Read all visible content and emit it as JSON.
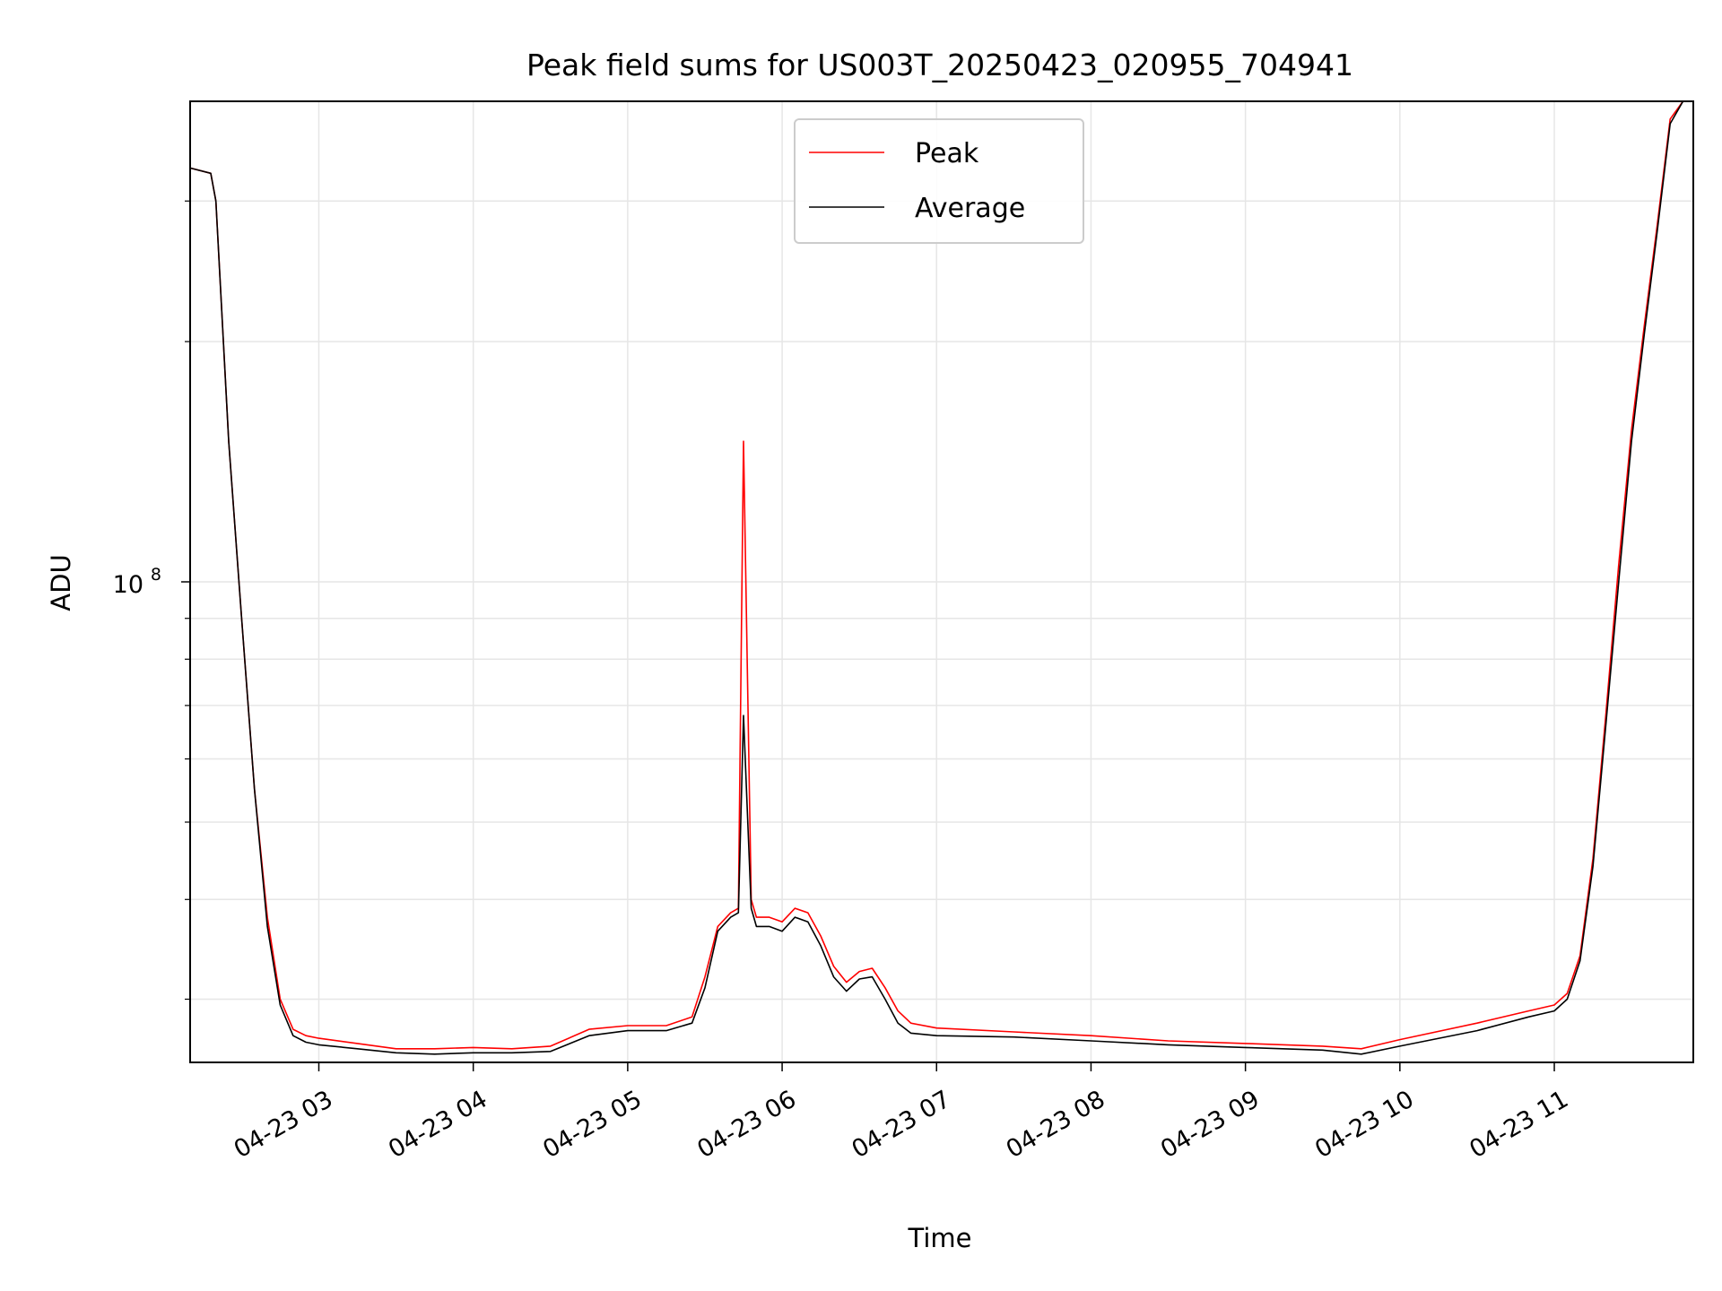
{
  "chart_data": {
    "type": "line",
    "title": "Peak field sums for US003T_20250423_020955_704941",
    "xlabel": "Time",
    "ylabel": "ADU",
    "yscale": "log",
    "xlim": [
      "2025-04-23 02:10",
      "2025-04-23 11:54"
    ],
    "ylim": [
      25000000,
      400000000
    ],
    "x_ticks": [
      "04-23 03",
      "04-23 04",
      "04-23 05",
      "04-23 06",
      "04-23 07",
      "04-23 08",
      "04-23 09",
      "04-23 10",
      "04-23 11"
    ],
    "y_major_tick": {
      "value": 100000000,
      "label_base": "10",
      "label_exp": "8"
    },
    "y_minor_ticks": [
      30000000,
      40000000,
      50000000,
      60000000,
      70000000,
      80000000,
      90000000,
      200000000,
      300000000
    ],
    "grid": true,
    "legend": {
      "position": "upper center",
      "entries": [
        "Peak",
        "Average"
      ]
    },
    "colors": {
      "Peak": "#ff0000",
      "Average": "#000000"
    },
    "series": [
      {
        "name": "Peak",
        "x": [
          "2025-04-23 02:10",
          "2025-04-23 02:18",
          "2025-04-23 02:20",
          "2025-04-23 02:25",
          "2025-04-23 02:30",
          "2025-04-23 02:35",
          "2025-04-23 02:40",
          "2025-04-23 02:45",
          "2025-04-23 02:50",
          "2025-04-23 02:55",
          "2025-04-23 03:00",
          "2025-04-23 03:15",
          "2025-04-23 03:30",
          "2025-04-23 03:45",
          "2025-04-23 04:00",
          "2025-04-23 04:15",
          "2025-04-23 04:30",
          "2025-04-23 04:45",
          "2025-04-23 05:00",
          "2025-04-23 05:15",
          "2025-04-23 05:25",
          "2025-04-23 05:30",
          "2025-04-23 05:35",
          "2025-04-23 05:40",
          "2025-04-23 05:43",
          "2025-04-23 05:45",
          "2025-04-23 05:48",
          "2025-04-23 05:50",
          "2025-04-23 05:55",
          "2025-04-23 06:00",
          "2025-04-23 06:05",
          "2025-04-23 06:10",
          "2025-04-23 06:15",
          "2025-04-23 06:20",
          "2025-04-23 06:25",
          "2025-04-23 06:30",
          "2025-04-23 06:35",
          "2025-04-23 06:40",
          "2025-04-23 06:45",
          "2025-04-23 06:50",
          "2025-04-23 07:00",
          "2025-04-23 07:30",
          "2025-04-23 08:00",
          "2025-04-23 08:30",
          "2025-04-23 09:00",
          "2025-04-23 09:30",
          "2025-04-23 09:45",
          "2025-04-23 10:00",
          "2025-04-23 10:30",
          "2025-04-23 10:50",
          "2025-04-23 11:00",
          "2025-04-23 11:05",
          "2025-04-23 11:10",
          "2025-04-23 11:15",
          "2025-04-23 11:20",
          "2025-04-23 11:25",
          "2025-04-23 11:30",
          "2025-04-23 11:35",
          "2025-04-23 11:40",
          "2025-04-23 11:45",
          "2025-04-23 11:50"
        ],
        "y": [
          330000000,
          325000000,
          300000000,
          150000000,
          90000000,
          55000000,
          38000000,
          30000000,
          27500000,
          27000000,
          26800000,
          26400000,
          26000000,
          26000000,
          26100000,
          26000000,
          26200000,
          27500000,
          27800000,
          27800000,
          28500000,
          32000000,
          37000000,
          38500000,
          39000000,
          150000000,
          40000000,
          38000000,
          38000000,
          37500000,
          39000000,
          38500000,
          36000000,
          33000000,
          31500000,
          32500000,
          32800000,
          31000000,
          29000000,
          28000000,
          27600000,
          27300000,
          27000000,
          26600000,
          26400000,
          26200000,
          26000000,
          26700000,
          28000000,
          29000000,
          29500000,
          30500000,
          34000000,
          45000000,
          68000000,
          105000000,
          155000000,
          210000000,
          280000000,
          380000000,
          400000000
        ]
      },
      {
        "name": "Average",
        "x": [
          "2025-04-23 02:10",
          "2025-04-23 02:18",
          "2025-04-23 02:20",
          "2025-04-23 02:25",
          "2025-04-23 02:30",
          "2025-04-23 02:35",
          "2025-04-23 02:40",
          "2025-04-23 02:45",
          "2025-04-23 02:50",
          "2025-04-23 02:55",
          "2025-04-23 03:00",
          "2025-04-23 03:15",
          "2025-04-23 03:30",
          "2025-04-23 03:45",
          "2025-04-23 04:00",
          "2025-04-23 04:15",
          "2025-04-23 04:30",
          "2025-04-23 04:45",
          "2025-04-23 05:00",
          "2025-04-23 05:15",
          "2025-04-23 05:25",
          "2025-04-23 05:30",
          "2025-04-23 05:35",
          "2025-04-23 05:40",
          "2025-04-23 05:43",
          "2025-04-23 05:45",
          "2025-04-23 05:48",
          "2025-04-23 05:50",
          "2025-04-23 05:55",
          "2025-04-23 06:00",
          "2025-04-23 06:05",
          "2025-04-23 06:10",
          "2025-04-23 06:15",
          "2025-04-23 06:20",
          "2025-04-23 06:25",
          "2025-04-23 06:30",
          "2025-04-23 06:35",
          "2025-04-23 06:40",
          "2025-04-23 06:45",
          "2025-04-23 06:50",
          "2025-04-23 07:00",
          "2025-04-23 07:30",
          "2025-04-23 08:00",
          "2025-04-23 08:30",
          "2025-04-23 09:00",
          "2025-04-23 09:30",
          "2025-04-23 09:45",
          "2025-04-23 10:00",
          "2025-04-23 10:30",
          "2025-04-23 10:50",
          "2025-04-23 11:00",
          "2025-04-23 11:05",
          "2025-04-23 11:10",
          "2025-04-23 11:15",
          "2025-04-23 11:20",
          "2025-04-23 11:25",
          "2025-04-23 11:30",
          "2025-04-23 11:35",
          "2025-04-23 11:40",
          "2025-04-23 11:45",
          "2025-04-23 11:50"
        ],
        "y": [
          330000000,
          325000000,
          300000000,
          150000000,
          90000000,
          55000000,
          37000000,
          29500000,
          27000000,
          26500000,
          26300000,
          26000000,
          25700000,
          25600000,
          25700000,
          25700000,
          25800000,
          27000000,
          27400000,
          27400000,
          28000000,
          31000000,
          36500000,
          38000000,
          38500000,
          68000000,
          39000000,
          37000000,
          37000000,
          36500000,
          38000000,
          37500000,
          35000000,
          32000000,
          30700000,
          31800000,
          32000000,
          30000000,
          28000000,
          27200000,
          27000000,
          26900000,
          26600000,
          26300000,
          26100000,
          25900000,
          25600000,
          26200000,
          27400000,
          28500000,
          29000000,
          30000000,
          33500000,
          44000000,
          66000000,
          100000000,
          150000000,
          205000000,
          275000000,
          375000000,
          400000000
        ]
      }
    ]
  }
}
